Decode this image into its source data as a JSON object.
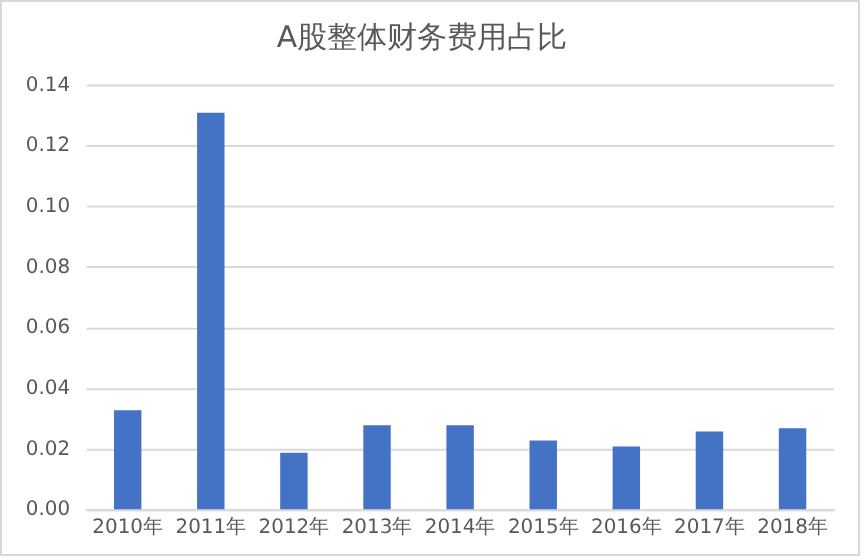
{
  "chart_data": {
    "type": "bar",
    "title": "A股整体财务费用占比",
    "categories": [
      "2010年",
      "2011年",
      "2012年",
      "2013年",
      "2014年",
      "2015年",
      "2016年",
      "2017年",
      "2018年"
    ],
    "values": [
      0.033,
      0.131,
      0.019,
      0.028,
      0.028,
      0.023,
      0.021,
      0.026,
      0.027
    ],
    "color": "#4472c4",
    "ylim": [
      0,
      0.14
    ],
    "yticks": [
      {
        "value": 0,
        "label": "0.00"
      },
      {
        "value": 0.02,
        "label": "0.02"
      },
      {
        "value": 0.04,
        "label": "0.04"
      },
      {
        "value": 0.06,
        "label": "0.06"
      },
      {
        "value": 0.08,
        "label": "0.08"
      },
      {
        "value": 0.1,
        "label": "0.10"
      },
      {
        "value": 0.12,
        "label": "0.12"
      },
      {
        "value": 0.14,
        "label": "0.14"
      }
    ],
    "grid": "y",
    "legend": false
  }
}
